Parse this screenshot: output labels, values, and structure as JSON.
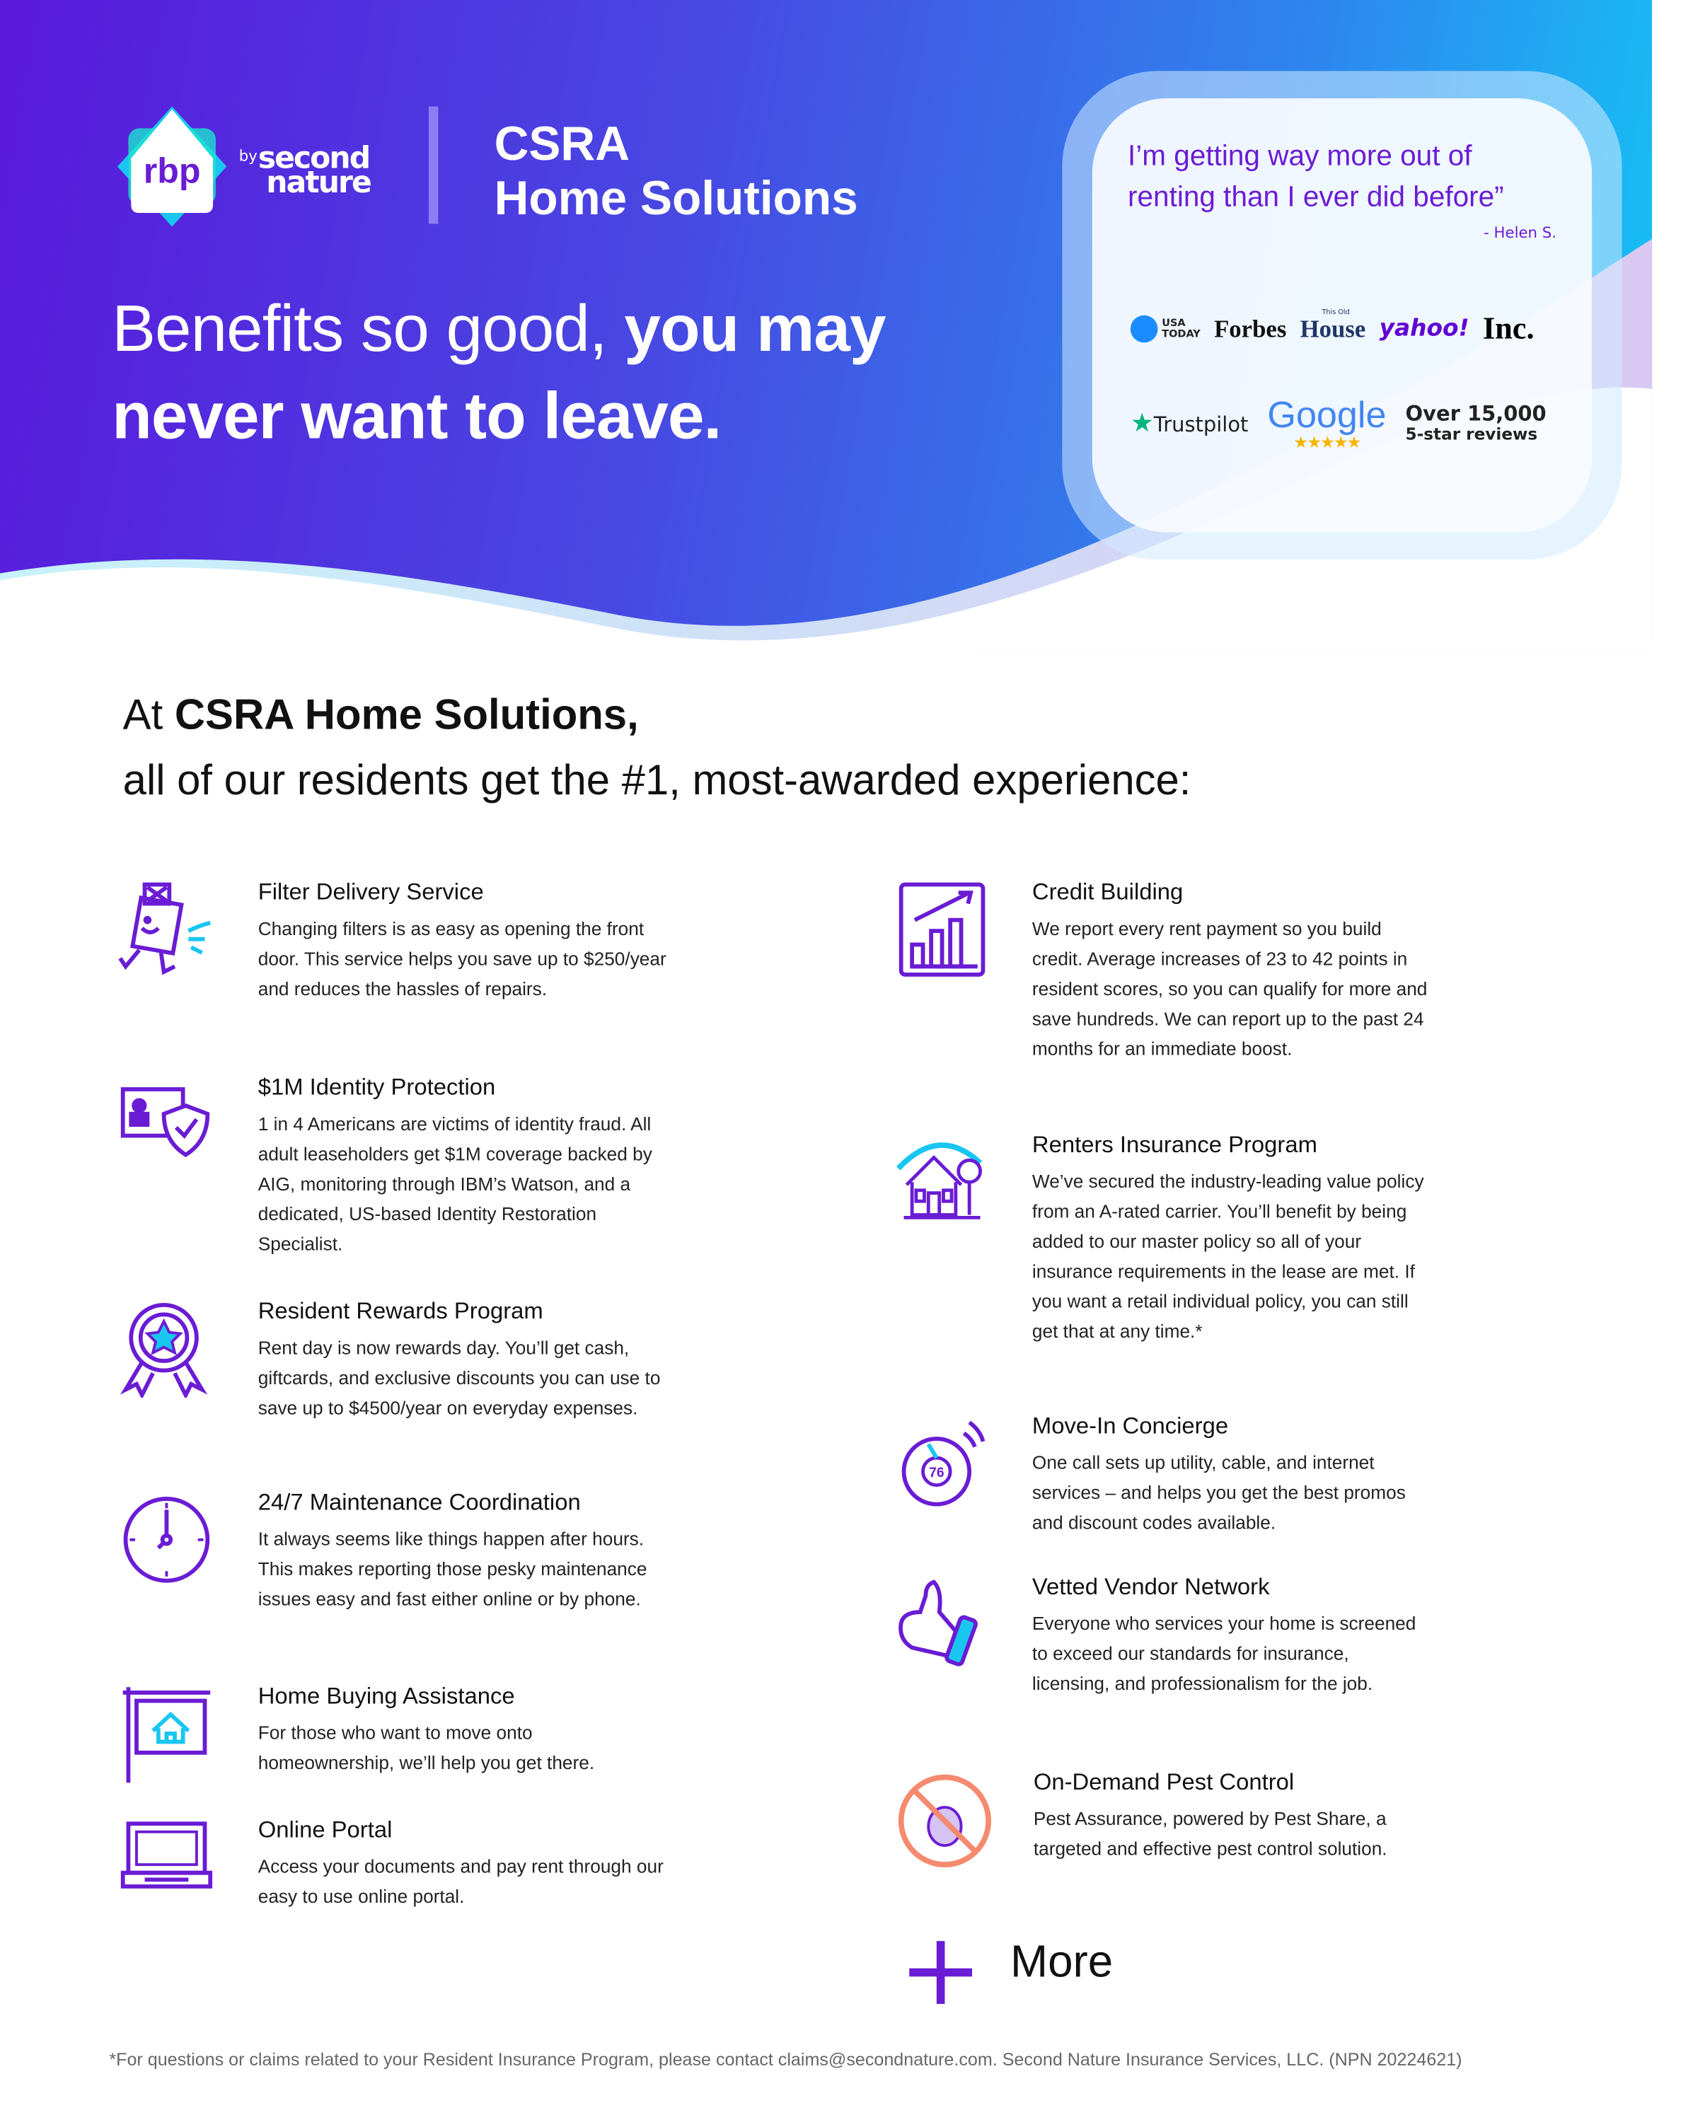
{
  "brand": {
    "logo_text": "rbp",
    "by": "by",
    "partner_line1": "second",
    "partner_line2": "nature",
    "company_line1": "CSRA",
    "company_line2": "Home Solutions"
  },
  "headline": {
    "light": "Benefits so good, ",
    "bold1": "you may",
    "bold2": "never want to leave."
  },
  "testimonial": {
    "quote": "I’m getting way more out of renting than I ever did before”",
    "author": "- Helen S."
  },
  "press": {
    "usa_today_1": "USA",
    "usa_today_2": "TODAY",
    "forbes": "Forbes",
    "this_old": "This Old",
    "house": "House",
    "yahoo": "yahoo!",
    "inc": "Inc.",
    "trustpilot": "Trustpilot",
    "google": "Google",
    "reviews_line1": "Over 15,000",
    "reviews_line2": "5-star reviews"
  },
  "section": {
    "line1_pre": "At ",
    "line1_bold": "CSRA Home Solutions,",
    "line2": "all of our residents get the #1, most-awarded experience:"
  },
  "benefits_left": [
    {
      "title": "Filter Delivery Service",
      "desc": "Changing filters is as easy as opening the front door. This service helps you save up to $250/year and reduces the hassles of repairs."
    },
    {
      "title": "$1M Identity Protection",
      "desc": "1 in 4 Americans are victims of identity fraud. All adult leaseholders get $1M coverage backed by AIG, monitoring through IBM’s Watson, and a dedicated, US-based Identity Restoration Specialist."
    },
    {
      "title": "Resident Rewards Program",
      "desc": "Rent day is now rewards day. You’ll get cash, giftcards, and exclusive discounts you can use to save up to $4500/year on everyday expenses."
    },
    {
      "title": "24/7 Maintenance Coordination",
      "desc": "It always seems like things happen after hours. This makes reporting those pesky maintenance issues easy and fast either online or by phone."
    },
    {
      "title": "Home Buying Assistance",
      "desc": "For those who want to move onto homeownership, we’ll help you get there."
    },
    {
      "title": "Online Portal",
      "desc": "Access your documents and pay rent through our easy to use online portal."
    }
  ],
  "benefits_right": [
    {
      "title": "Credit Building",
      "desc": "We report every rent payment so you build credit. Average increases of 23 to 42 points in resident scores, so you can qualify for more and save hundreds. We can report up to the past 24 months for an immediate boost."
    },
    {
      "title": "Renters Insurance Program",
      "desc": "We’ve secured the industry-leading value policy from an A-rated carrier. You’ll benefit by being added to our master policy so all of your insurance requirements in the lease are met. If you want a retail individual policy, you can still get that at any time.*"
    },
    {
      "title": "Move-In Concierge",
      "desc": "One call sets up utility, cable, and internet services – and helps you get the best promos and discount codes available."
    },
    {
      "title": "Vetted Vendor Network",
      "desc": "Everyone who services your home is screened to exceed our standards for insurance, licensing, and professionalism for the job."
    },
    {
      "title": "On-Demand Pest Control",
      "desc": "Pest Assurance, powered by Pest Share, a targeted and effective pest control solution."
    }
  ],
  "more": {
    "label": "More"
  },
  "footer": "*For questions or claims related to your Resident Insurance Program, please contact claims@secondnature.com. Second Nature Insurance Services, LLC. (NPN 20224621)",
  "colors": {
    "purple": "#6a1cd4",
    "cyan": "#19c6f2",
    "pest_orange": "#f58a6e"
  }
}
